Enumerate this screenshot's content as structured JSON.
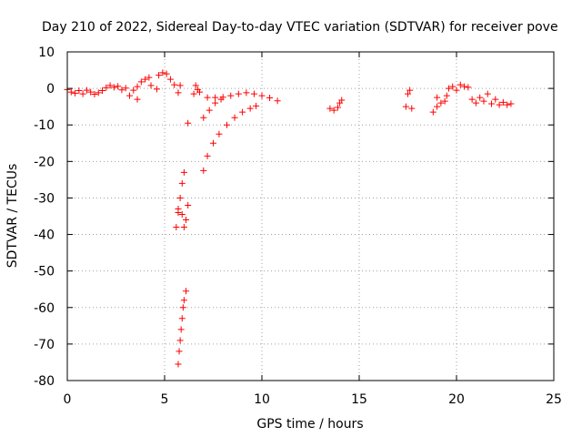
{
  "chart_data": {
    "type": "scatter",
    "title": "Day 210 of 2022, Sidereal Day-to-day VTEC variation (SDTVAR) for receiver pove",
    "xlabel": "GPS time / hours",
    "ylabel": "SDTVAR / TECUs",
    "xlim": [
      0,
      25
    ],
    "ylim": [
      -80,
      10
    ],
    "xticks": [
      0,
      5,
      10,
      15,
      20,
      25
    ],
    "yticks": [
      10,
      0,
      -10,
      -20,
      -30,
      -40,
      -50,
      -60,
      -70,
      -80
    ],
    "grid": true,
    "marker": "plus",
    "series": [
      {
        "name": "SDTVAR",
        "color": "#ff0000",
        "points": [
          [
            0.0,
            -0.3
          ],
          [
            0.2,
            -1.0
          ],
          [
            0.4,
            -1.3
          ],
          [
            0.6,
            -0.6
          ],
          [
            0.8,
            -1.5
          ],
          [
            1.0,
            -0.5
          ],
          [
            1.2,
            -1.0
          ],
          [
            1.4,
            -1.6
          ],
          [
            1.6,
            -1.2
          ],
          [
            1.8,
            -0.6
          ],
          [
            2.0,
            0.2
          ],
          [
            2.2,
            0.8
          ],
          [
            2.4,
            0.3
          ],
          [
            2.6,
            0.6
          ],
          [
            2.8,
            -0.4
          ],
          [
            3.0,
            0.1
          ],
          [
            3.2,
            -2.0
          ],
          [
            3.4,
            -0.5
          ],
          [
            3.6,
            -3.0
          ],
          [
            3.6,
            0.5
          ],
          [
            3.8,
            1.8
          ],
          [
            4.0,
            2.5
          ],
          [
            4.2,
            3.0
          ],
          [
            4.3,
            0.8
          ],
          [
            4.6,
            -0.2
          ],
          [
            4.7,
            3.6
          ],
          [
            4.9,
            4.3
          ],
          [
            5.1,
            4.0
          ],
          [
            5.3,
            2.5
          ],
          [
            5.5,
            1.0
          ],
          [
            5.7,
            -1.2
          ],
          [
            5.8,
            0.8
          ],
          [
            6.2,
            -9.5
          ],
          [
            5.6,
            -38.0
          ],
          [
            5.7,
            -34.0
          ],
          [
            5.8,
            -30.0
          ],
          [
            5.9,
            -26.0
          ],
          [
            6.0,
            -23.0
          ],
          [
            5.7,
            -33.0
          ],
          [
            5.9,
            -34.5
          ],
          [
            6.0,
            -38.0
          ],
          [
            6.1,
            -36.0
          ],
          [
            6.2,
            -32.0
          ],
          [
            5.7,
            -75.5
          ],
          [
            5.75,
            -72.0
          ],
          [
            5.8,
            -69.0
          ],
          [
            5.85,
            -66.0
          ],
          [
            5.9,
            -63.0
          ],
          [
            5.95,
            -60.0
          ],
          [
            6.0,
            -58.0
          ],
          [
            6.1,
            -55.5
          ],
          [
            6.5,
            -1.5
          ],
          [
            6.6,
            0.8
          ],
          [
            6.7,
            -0.3
          ],
          [
            6.8,
            -1.0
          ],
          [
            7.0,
            -22.5
          ],
          [
            7.2,
            -18.5
          ],
          [
            7.5,
            -15.0
          ],
          [
            7.8,
            -12.5
          ],
          [
            8.2,
            -10.0
          ],
          [
            8.6,
            -8.0
          ],
          [
            9.0,
            -6.5
          ],
          [
            9.4,
            -5.5
          ],
          [
            9.7,
            -4.8
          ],
          [
            7.0,
            -8.0
          ],
          [
            7.3,
            -6.0
          ],
          [
            7.6,
            -4.0
          ],
          [
            7.9,
            -3.0
          ],
          [
            7.2,
            -2.5
          ],
          [
            7.6,
            -2.5
          ],
          [
            8.0,
            -2.4
          ],
          [
            8.4,
            -2.0
          ],
          [
            8.8,
            -1.5
          ],
          [
            9.2,
            -1.2
          ],
          [
            9.6,
            -1.5
          ],
          [
            10.0,
            -2.0
          ],
          [
            10.4,
            -2.6
          ],
          [
            10.8,
            -3.4
          ],
          [
            13.5,
            -5.5
          ],
          [
            13.7,
            -6.0
          ],
          [
            13.9,
            -5.2
          ],
          [
            14.0,
            -4.0
          ],
          [
            14.1,
            -3.2
          ],
          [
            17.4,
            -5.0
          ],
          [
            17.5,
            -1.5
          ],
          [
            17.6,
            -0.5
          ],
          [
            17.7,
            -5.5
          ],
          [
            18.8,
            -6.5
          ],
          [
            19.0,
            -5.0
          ],
          [
            19.2,
            -4.0
          ],
          [
            19.4,
            -3.5
          ],
          [
            19.0,
            -2.5
          ],
          [
            19.5,
            -2.0
          ],
          [
            19.6,
            0.0
          ],
          [
            19.8,
            0.5
          ],
          [
            20.0,
            -0.5
          ],
          [
            20.2,
            1.0
          ],
          [
            20.4,
            0.5
          ],
          [
            20.6,
            0.3
          ],
          [
            20.8,
            -3.0
          ],
          [
            21.0,
            -4.0
          ],
          [
            21.2,
            -2.5
          ],
          [
            21.4,
            -3.5
          ],
          [
            21.6,
            -1.5
          ],
          [
            21.8,
            -4.2
          ],
          [
            22.0,
            -3.0
          ],
          [
            22.2,
            -4.5
          ],
          [
            22.4,
            -3.8
          ],
          [
            22.6,
            -4.5
          ],
          [
            22.8,
            -4.2
          ]
        ]
      }
    ]
  }
}
